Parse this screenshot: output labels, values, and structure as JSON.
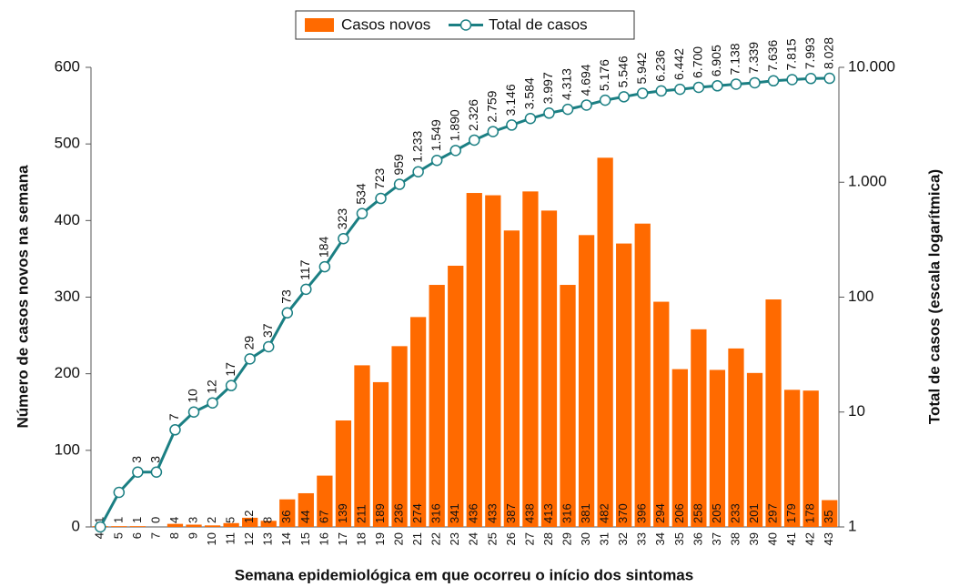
{
  "chart_data": {
    "type": "bar",
    "xlabel": "Semana epidemiológica em que ocorreu o início dos sintomas",
    "ylabel": "Número de casos novos na semana",
    "y2label": "Total de casos (escala logarítmica)",
    "categories": [
      "4",
      "5",
      "6",
      "7",
      "8",
      "9",
      "10",
      "11",
      "12",
      "13",
      "14",
      "15",
      "16",
      "17",
      "18",
      "19",
      "20",
      "21",
      "22",
      "23",
      "24",
      "25",
      "26",
      "27",
      "28",
      "29",
      "30",
      "31",
      "32",
      "33",
      "34",
      "35",
      "36",
      "37",
      "38",
      "39",
      "40",
      "41",
      "42",
      "43"
    ],
    "series": [
      {
        "name": "Casos novos",
        "type": "bar",
        "color": "#ff6a00",
        "values": [
          1,
          1,
          1,
          0,
          4,
          3,
          2,
          5,
          12,
          8,
          36,
          44,
          67,
          139,
          211,
          189,
          236,
          274,
          316,
          341,
          436,
          433,
          387,
          438,
          413,
          316,
          381,
          482,
          370,
          396,
          294,
          206,
          258,
          205,
          233,
          201,
          297,
          179,
          178,
          35
        ]
      },
      {
        "name": "Total de casos",
        "type": "line",
        "axis": "y2",
        "color": "#1b7f83",
        "values": [
          1,
          2,
          3,
          3,
          7,
          10,
          12,
          17,
          29,
          37,
          73,
          117,
          184,
          323,
          534,
          723,
          959,
          1233,
          1549,
          1890,
          2326,
          2759,
          3146,
          3584,
          3997,
          4313,
          4694,
          5176,
          5546,
          5942,
          6236,
          6442,
          6700,
          6905,
          7138,
          7339,
          7636,
          7815,
          7993,
          8028
        ],
        "value_labels": [
          null,
          null,
          "3",
          "3",
          "7",
          "10",
          "12",
          "17",
          "29",
          "37",
          "73",
          "117",
          "184",
          "323",
          "534",
          "723",
          "959",
          "1.233",
          "1.549",
          "1.890",
          "2.326",
          "2.759",
          "3.146",
          "3.584",
          "3.997",
          "4.313",
          "4.694",
          "5.176",
          "5.546",
          "5.942",
          "6.236",
          "6.442",
          "6.700",
          "6.905",
          "7.138",
          "7.339",
          "7.636",
          "7.815",
          "7.993",
          "8.028"
        ]
      }
    ],
    "ylim": [
      0,
      600
    ],
    "yticks": [
      0,
      100,
      200,
      300,
      400,
      500,
      600
    ],
    "y2lim": [
      1,
      10000
    ],
    "y2log": true,
    "y2ticks": [
      1,
      10,
      100,
      {
        "value": 1000,
        "label": "1.000"
      },
      {
        "value": 10000,
        "label": "10.000"
      }
    ]
  }
}
